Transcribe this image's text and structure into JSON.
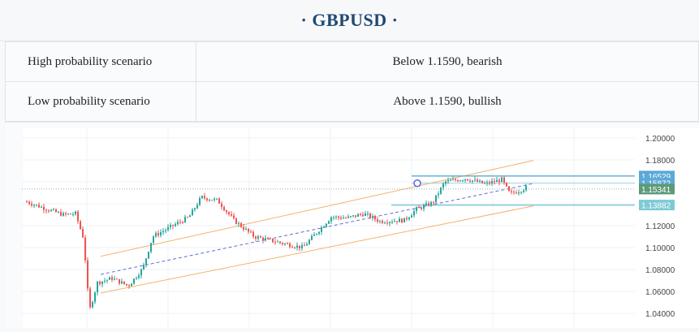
{
  "header": {
    "title": "GBPUSD"
  },
  "scenarios": [
    {
      "label": "High probability scenario",
      "value": "Below 1.1590, bearish"
    },
    {
      "label": "Low probability scenario",
      "value": "Above 1.1590, bullish"
    }
  ],
  "chart_data": {
    "type": "candlestick",
    "symbol": "GBPUSD",
    "y_ticks": [
      "1.20000",
      "1.18000",
      "1.16000",
      "1.14000",
      "1.12000",
      "1.10000",
      "1.08000",
      "1.06000",
      "1.04000"
    ],
    "ylim": [
      1.03,
      1.21
    ],
    "grid": true,
    "price_labels": [
      {
        "value": "1.16529",
        "color": "#5aa9d6"
      },
      {
        "value": "1.15872",
        "color": "#5aa9d6"
      },
      {
        "value": "1.15341",
        "color": "#5c9a78"
      },
      {
        "value": "1.13882",
        "color": "#7dcad6"
      }
    ],
    "colors": {
      "up": "#26a69a",
      "down": "#ef5350",
      "channel": "#f5b26b",
      "midline": "#5b6fd6"
    }
  }
}
